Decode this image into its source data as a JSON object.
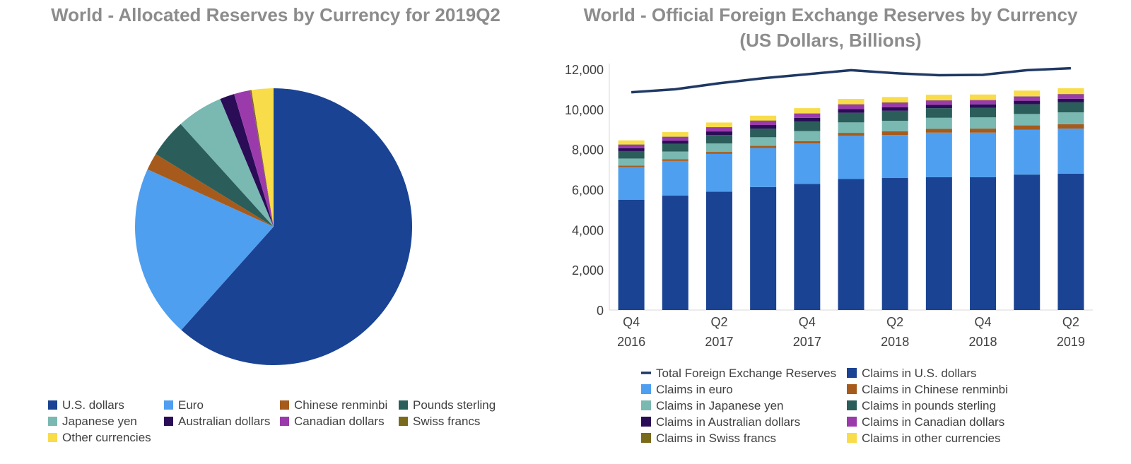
{
  "chart_data": [
    {
      "type": "pie",
      "title": "World - Allocated Reserves by Currency for 2019Q2",
      "slices": [
        {
          "label": "U.S. dollars",
          "value": 61.6,
          "color": "#1a4393"
        },
        {
          "label": "Euro",
          "value": 20.2,
          "color": "#4f9ff0"
        },
        {
          "label": "Chinese renminbi",
          "value": 2.0,
          "color": "#a65b1c"
        },
        {
          "label": "Pounds sterling",
          "value": 4.5,
          "color": "#2b5e5a"
        },
        {
          "label": "Japanese yen",
          "value": 5.4,
          "color": "#7ab8b2"
        },
        {
          "label": "Australian dollars",
          "value": 1.7,
          "color": "#2a0c57"
        },
        {
          "label": "Canadian dollars",
          "value": 1.9,
          "color": "#9b3bab"
        },
        {
          "label": "Swiss francs",
          "value": 0.15,
          "color": "#7a6a1b"
        },
        {
          "label": "Other currencies",
          "value": 2.55,
          "color": "#f8dc4a"
        }
      ],
      "legend_position": "bottom"
    },
    {
      "type": "bar",
      "stacked": true,
      "title": "World - Official Foreign Exchange Reserves by Currency",
      "subtitle": "(US Dollars, Billions)",
      "categories": [
        "2016Q4",
        "2017Q1",
        "2017Q2",
        "2017Q3",
        "2017Q4",
        "2018Q1",
        "2018Q2",
        "2018Q3",
        "2018Q4",
        "2019Q1",
        "2019Q2"
      ],
      "tick_labels": [
        {
          "index": 0,
          "line1": "Q4",
          "line2": "2016"
        },
        {
          "index": 2,
          "line1": "Q2",
          "line2": "2017"
        },
        {
          "index": 4,
          "line1": "Q4",
          "line2": "2017"
        },
        {
          "index": 6,
          "line1": "Q2",
          "line2": "2018"
        },
        {
          "index": 8,
          "line1": "Q4",
          "line2": "2018"
        },
        {
          "index": 10,
          "line1": "Q2",
          "line2": "2019"
        }
      ],
      "ylim": [
        0,
        12000
      ],
      "yticks": [
        "0",
        "2,000",
        "4,000",
        "6,000",
        "8,000",
        "10,000",
        "12,000"
      ],
      "ytick_values": [
        0,
        2000,
        4000,
        6000,
        8000,
        10000,
        12000
      ],
      "series": [
        {
          "name": "Claims in U.S. dollars",
          "color": "#1a4393",
          "values": [
            5500,
            5700,
            5900,
            6130,
            6280,
            6530,
            6580,
            6620,
            6620,
            6750,
            6800
          ]
        },
        {
          "name": "Claims in euro",
          "color": "#4f9ff0",
          "values": [
            1620,
            1730,
            1880,
            1940,
            2020,
            2150,
            2140,
            2220,
            2220,
            2240,
            2240
          ]
        },
        {
          "name": "Claims in Chinese renminbi",
          "color": "#a65b1c",
          "values": [
            80,
            90,
            100,
            110,
            120,
            150,
            190,
            190,
            200,
            210,
            220
          ]
        },
        {
          "name": "Claims in Japanese yen",
          "color": "#7ab8b2",
          "values": [
            350,
            380,
            420,
            430,
            500,
            520,
            520,
            550,
            560,
            570,
            590
          ]
        },
        {
          "name": "Claims in pounds sterling",
          "color": "#2b5e5a",
          "values": [
            370,
            380,
            420,
            430,
            470,
            480,
            500,
            480,
            480,
            480,
            500
          ]
        },
        {
          "name": "Claims in Australian dollars",
          "color": "#2a0c57",
          "values": [
            150,
            160,
            180,
            180,
            190,
            190,
            180,
            170,
            170,
            180,
            180
          ]
        },
        {
          "name": "Claims in Canadian dollars",
          "color": "#9b3bab",
          "values": [
            170,
            190,
            200,
            210,
            210,
            220,
            220,
            210,
            200,
            210,
            220
          ]
        },
        {
          "name": "Claims in Swiss francs",
          "color": "#7a6a1b",
          "values": [
            15,
            15,
            15,
            15,
            15,
            15,
            15,
            15,
            15,
            15,
            15
          ]
        },
        {
          "name": "Claims in other currencies",
          "color": "#f8dc4a",
          "values": [
            200,
            220,
            230,
            240,
            255,
            265,
            270,
            275,
            275,
            280,
            285
          ]
        }
      ],
      "line_series": {
        "name": "Total Foreign Exchange Reserves",
        "color": "#1f3864",
        "values": [
          10850,
          11000,
          11300,
          11550,
          11750,
          11950,
          11800,
          11700,
          11720,
          11950,
          12050
        ]
      },
      "legend_position": "bottom"
    }
  ]
}
